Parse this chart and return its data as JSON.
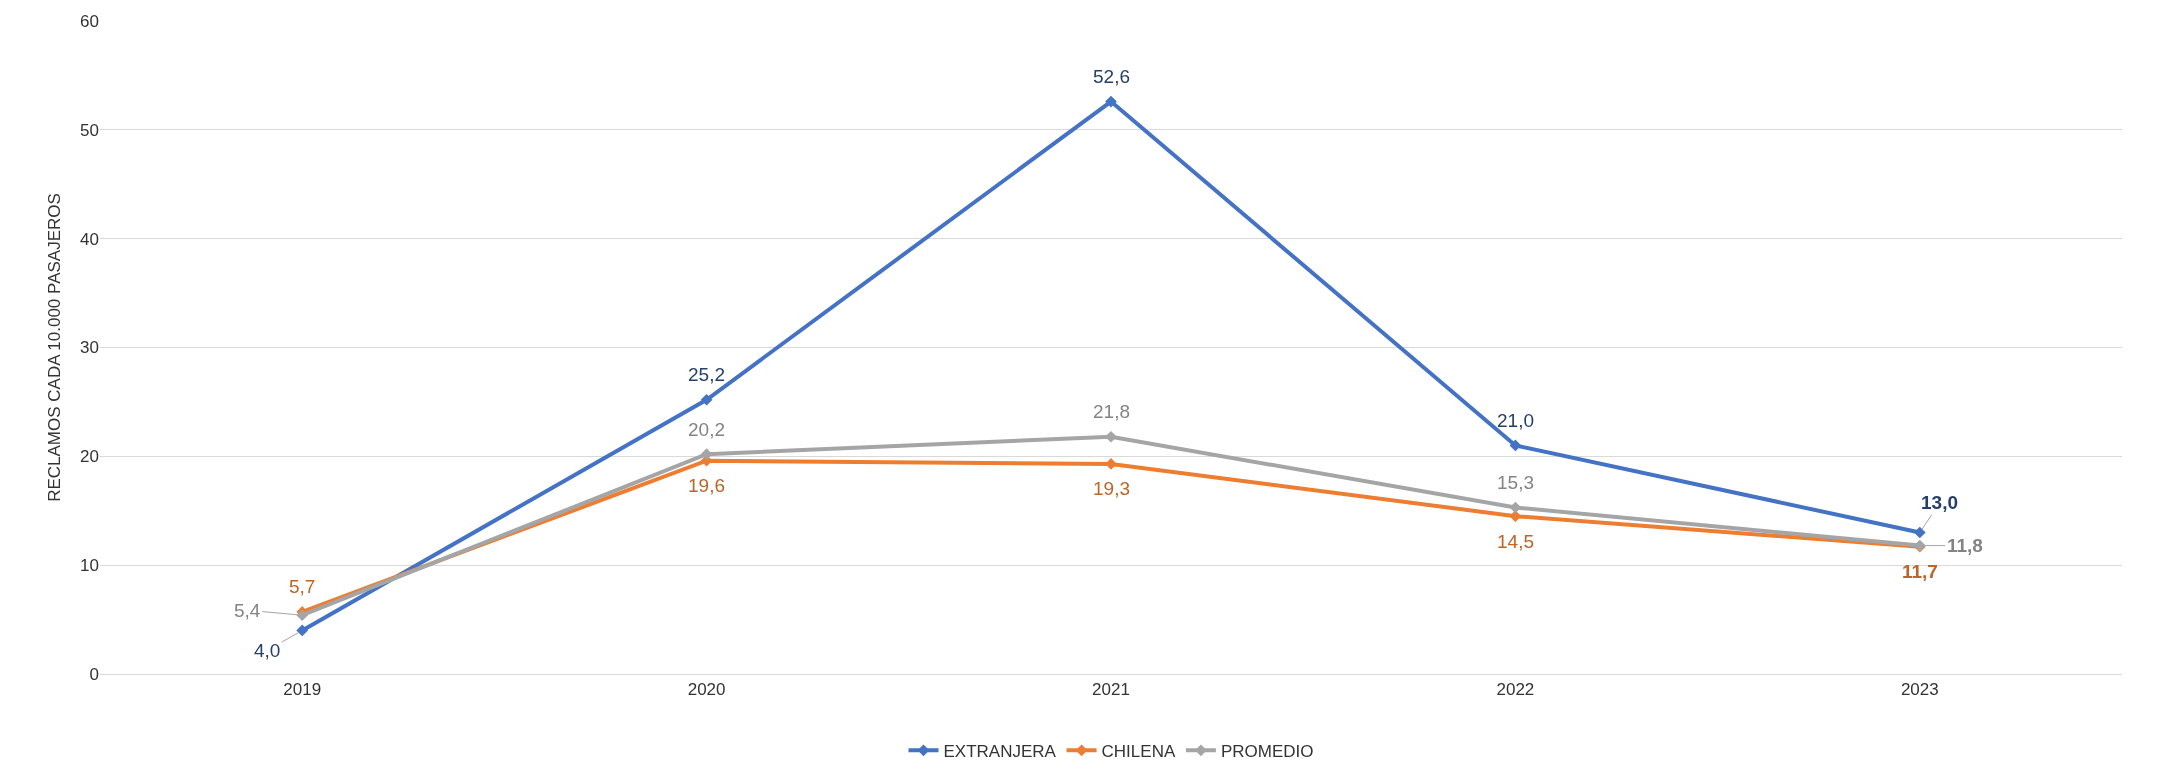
{
  "chart_data": {
    "type": "line",
    "ylabel": "RECLAMOS CADA 10.000 PASAJEROS",
    "categories": [
      "2019",
      "2020",
      "2021",
      "2022",
      "2023"
    ],
    "series": [
      {
        "name": "EXTRANJERA",
        "color": "#4472c4",
        "values": [
          4.0,
          25.2,
          52.6,
          21.0,
          13.0
        ],
        "value_labels": [
          "4,0",
          "25,2",
          "52,6",
          "21,0",
          "13,0"
        ]
      },
      {
        "name": "CHILENA",
        "color": "#ed7d31",
        "values": [
          5.7,
          19.6,
          19.3,
          14.5,
          11.7
        ],
        "value_labels": [
          "5,7",
          "19,6",
          "19,3",
          "14,5",
          "11,7"
        ]
      },
      {
        "name": "PROMEDIO",
        "color": "#a5a5a5",
        "values": [
          5.4,
          20.2,
          21.8,
          15.3,
          11.8
        ],
        "value_labels": [
          "5,4",
          "20,2",
          "21,8",
          "15,3",
          "11,8"
        ]
      }
    ],
    "ylim": [
      0,
      60
    ],
    "yticks": [
      0,
      10,
      20,
      30,
      40,
      50,
      60
    ],
    "grid": "y",
    "legend": "bottom",
    "marker": "diamond",
    "line_style": "solid"
  }
}
